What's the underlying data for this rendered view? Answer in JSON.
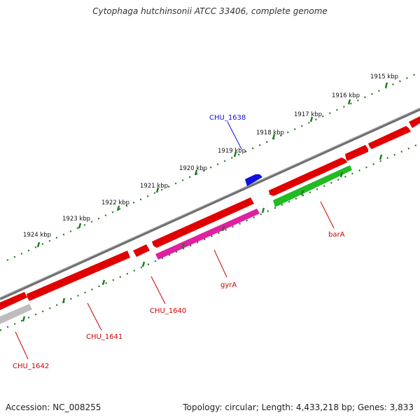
{
  "title": "Cytophaga hutchinsonii ATCC 33406, complete genome",
  "footer": {
    "accession": "Accession: NC_008255",
    "summary": "Topology: circular; Length: 4,433,218 bp; Genes: 3,833"
  },
  "colors": {
    "backbone": "#7a7a7a",
    "tick": "#1f7a1f",
    "cds_default": "#e00000",
    "gyrA": "#e020a0",
    "barA": "#22bb22",
    "CHU_1642": "#bdbdbd",
    "CHU_1638": "#1010e0"
  },
  "scale_labels": [
    "1915 kbp",
    "1916 kbp",
    "1917 kbp",
    "1918 kbp",
    "1919 kbp",
    "1920 kbp",
    "1921 kbp",
    "1922 kbp",
    "1923 kbp",
    "1924 kbp"
  ],
  "gene_labels": [
    "CHU_1638",
    "barA",
    "gyrA",
    "CHU_1640",
    "CHU_1641",
    "CHU_1642"
  ]
}
